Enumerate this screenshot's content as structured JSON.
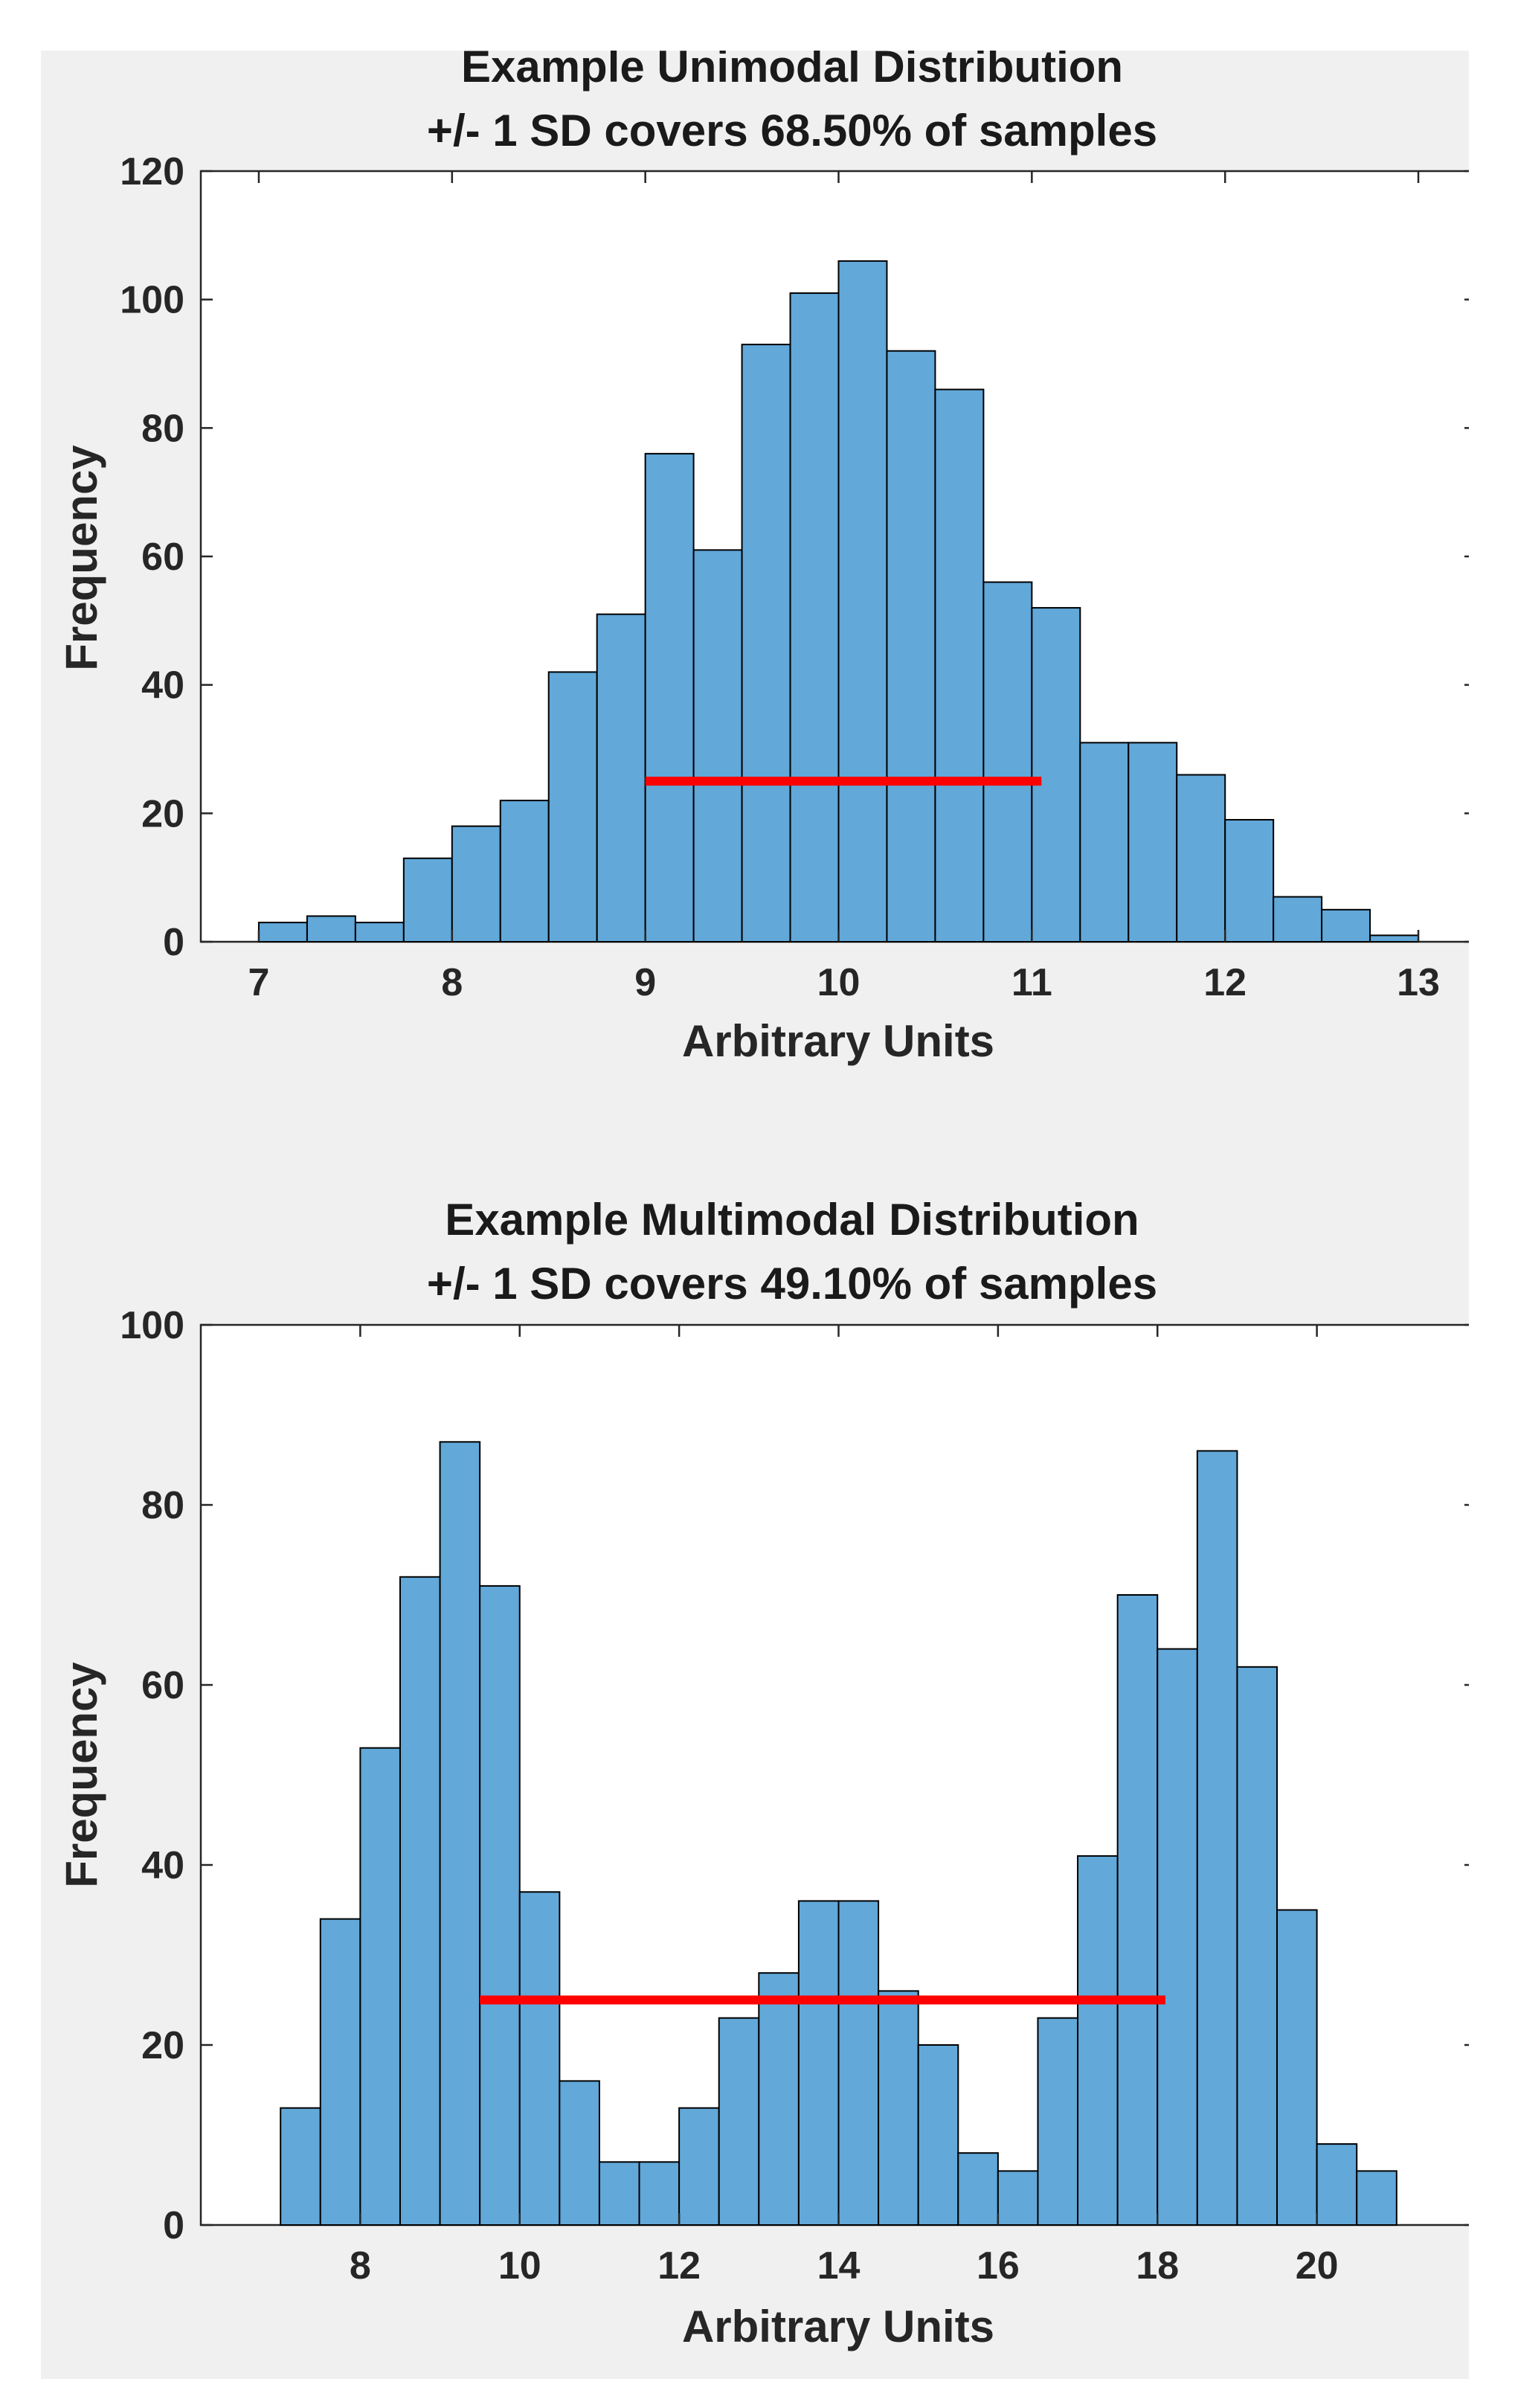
{
  "chart_data": [
    {
      "type": "bar",
      "title": "Example Unimodal Distribution",
      "subtitle": "+/- 1 SD covers 68.50% of samples",
      "xlabel": "Arbitrary Units",
      "ylabel": "Frequency",
      "xlim": [
        6.7,
        13.3
      ],
      "ylim": [
        0,
        120
      ],
      "xticks": [
        7,
        8,
        9,
        10,
        11,
        12,
        13
      ],
      "yticks": [
        0,
        20,
        40,
        60,
        80,
        100,
        120
      ],
      "bin_edges": [
        7.0,
        7.25,
        7.5,
        7.75,
        8.0,
        8.25,
        8.5,
        8.75,
        9.0,
        9.25,
        9.5,
        9.75,
        10.0,
        10.25,
        10.5,
        10.75,
        11.0,
        11.25,
        11.5,
        11.75,
        12.0,
        12.25,
        12.5,
        12.75,
        13.0
      ],
      "values": [
        3,
        4,
        3,
        13,
        18,
        22,
        42,
        51,
        76,
        61,
        93,
        101,
        106,
        92,
        86,
        56,
        52,
        31,
        31,
        26,
        19,
        7,
        5,
        1
      ],
      "sd_line": {
        "x_start": 9.0,
        "x_end": 11.05,
        "y": 25,
        "color": "#ff0000"
      },
      "bar_color": "#62a8d9"
    },
    {
      "type": "bar",
      "title": "Example Multimodal Distribution",
      "subtitle": "+/- 1 SD covers 49.10% of samples",
      "xlabel": "Arbitrary Units",
      "ylabel": "Frequency",
      "xlim": [
        6.0,
        22.0
      ],
      "ylim": [
        0,
        100
      ],
      "xticks": [
        8,
        10,
        12,
        14,
        16,
        18,
        20
      ],
      "yticks": [
        0,
        20,
        40,
        60,
        80,
        100
      ],
      "bin_edges": [
        7.0,
        7.5,
        8.0,
        8.5,
        9.0,
        9.5,
        10.0,
        10.5,
        11.0,
        11.5,
        12.0,
        12.5,
        13.0,
        13.5,
        14.0,
        14.5,
        15.0,
        15.5,
        16.0,
        16.5,
        17.0,
        17.5,
        18.0,
        18.5,
        19.0,
        19.5,
        20.0,
        20.5,
        21.0
      ],
      "values": [
        13,
        34,
        53,
        72,
        87,
        71,
        37,
        16,
        7,
        7,
        13,
        23,
        28,
        36,
        36,
        26,
        20,
        8,
        6,
        23,
        41,
        70,
        64,
        86,
        62,
        35,
        9,
        6
      ],
      "sd_line": {
        "x_start": 9.5,
        "x_end": 18.1,
        "y": 25,
        "color": "#ff0000"
      },
      "bar_color": "#62a8d9"
    }
  ]
}
